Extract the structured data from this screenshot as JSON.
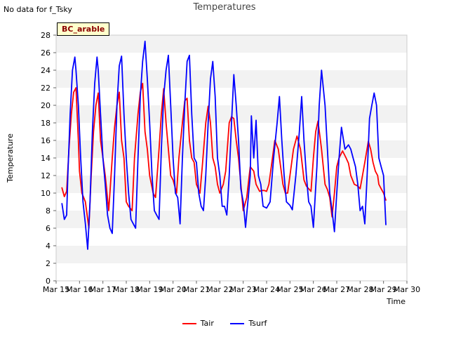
{
  "note": "No data for f_Tsky",
  "site_label": "BC_arable",
  "chart_data": {
    "type": "line",
    "title": "Temperatures",
    "xlabel": "Time",
    "ylabel": "Temperature",
    "ylim": [
      0,
      28
    ],
    "yticks": [
      0,
      2,
      4,
      6,
      8,
      10,
      12,
      14,
      16,
      18,
      20,
      22,
      24,
      26,
      28
    ],
    "xlim": [
      15,
      30
    ],
    "xticks": [
      15,
      16,
      17,
      18,
      19,
      20,
      21,
      22,
      23,
      24,
      25,
      26,
      27,
      28,
      29,
      30
    ],
    "xtick_labels": [
      "Mar 15",
      "Mar 16",
      "Mar 17",
      "Mar 18",
      "Mar 19",
      "Mar 20",
      "Mar 21",
      "Mar 22",
      "Mar 23",
      "Mar 24",
      "Mar 25",
      "Mar 26",
      "Mar 27",
      "Mar 28",
      "Mar 29",
      "Mar 30"
    ],
    "grid": "horizontal bands",
    "legend_position": "bottom-center",
    "series": [
      {
        "name": "Tair",
        "color": "#ff0000",
        "x": [
          15.25,
          15.35,
          15.45,
          15.55,
          15.65,
          15.75,
          15.85,
          15.95,
          16.0,
          16.1,
          16.25,
          16.4,
          16.5,
          16.6,
          16.7,
          16.8,
          16.9,
          17.0,
          17.1,
          17.25,
          17.4,
          17.5,
          17.6,
          17.7,
          17.8,
          17.9,
          18.0,
          18.1,
          18.25,
          18.35,
          18.5,
          18.6,
          18.7,
          18.8,
          18.9,
          19.0,
          19.15,
          19.25,
          19.4,
          19.5,
          19.6,
          19.7,
          19.8,
          19.9,
          20.0,
          20.15,
          20.25,
          20.4,
          20.5,
          20.6,
          20.7,
          20.8,
          20.9,
          21.0,
          21.15,
          21.25,
          21.4,
          21.5,
          21.6,
          21.7,
          21.8,
          21.9,
          22.0,
          22.15,
          22.25,
          22.4,
          22.5,
          22.6,
          22.7,
          22.8,
          22.9,
          23.0,
          23.15,
          23.3,
          23.45,
          23.55,
          23.7,
          23.8,
          23.9,
          24.0,
          24.1,
          24.2,
          24.35,
          24.5,
          24.6,
          24.7,
          24.8,
          24.9,
          25.0,
          25.15,
          25.3,
          25.45,
          25.6,
          25.7,
          25.8,
          25.9,
          26.0,
          26.1,
          26.2,
          26.35,
          26.5,
          26.6,
          26.7,
          26.8,
          26.9,
          27.0,
          27.1,
          27.25,
          27.4,
          27.5,
          27.6,
          27.75,
          27.9,
          28.0,
          28.1,
          28.2,
          28.35,
          28.45,
          28.55,
          28.65,
          28.75,
          28.8,
          28.9,
          29.0,
          29.1
        ],
        "y": [
          10.6,
          9.6,
          10.2,
          15.0,
          19.0,
          21.5,
          22.0,
          16.0,
          12.5,
          10.0,
          9.0,
          6.0,
          12.0,
          17.0,
          20.0,
          21.4,
          16.0,
          14.0,
          12.0,
          8.0,
          14.0,
          17.5,
          20.0,
          21.5,
          16.0,
          14.0,
          9.0,
          8.5,
          8.0,
          14.0,
          19.0,
          21.5,
          22.5,
          17.0,
          15.0,
          12.0,
          10.0,
          9.5,
          15.0,
          19.0,
          21.9,
          18.0,
          15.0,
          12.0,
          11.5,
          10.0,
          14.0,
          18.0,
          20.5,
          20.8,
          16.0,
          14.0,
          13.5,
          11.0,
          10.0,
          13.0,
          18.0,
          19.9,
          18.0,
          14.0,
          13.0,
          11.0,
          10.0,
          11.0,
          12.5,
          18.0,
          18.7,
          18.5,
          16.0,
          14.0,
          11.0,
          8.0,
          9.5,
          13.0,
          12.5,
          11.0,
          10.2,
          10.3,
          10.3,
          10.2,
          11.0,
          13.0,
          16.0,
          15.0,
          13.0,
          11.0,
          10.0,
          10.0,
          12.0,
          15.0,
          16.5,
          15.0,
          11.5,
          10.8,
          10.5,
          10.2,
          14.0,
          17.0,
          18.2,
          15.0,
          11.0,
          10.4,
          9.5,
          7.3,
          10.0,
          13.0,
          14.0,
          14.8,
          14.0,
          13.4,
          12.0,
          11.0,
          10.8,
          10.5,
          12.0,
          13.5,
          15.9,
          15.0,
          13.5,
          12.5,
          12.0,
          11.0,
          10.5,
          10.0,
          9.2
        ]
      },
      {
        "name": "Tsurf",
        "color": "#0000ff",
        "x": [
          15.25,
          15.35,
          15.45,
          15.5,
          15.6,
          15.7,
          15.8,
          15.85,
          15.95,
          16.05,
          16.15,
          16.25,
          16.35,
          16.45,
          16.55,
          16.65,
          16.75,
          16.8,
          16.9,
          17.0,
          17.1,
          17.2,
          17.3,
          17.4,
          17.5,
          17.6,
          17.7,
          17.8,
          17.9,
          18.0,
          18.1,
          18.2,
          18.3,
          18.4,
          18.5,
          18.6,
          18.7,
          18.8,
          18.9,
          19.0,
          19.1,
          19.2,
          19.3,
          19.4,
          19.5,
          19.6,
          19.7,
          19.8,
          19.9,
          20.0,
          20.1,
          20.2,
          20.3,
          20.4,
          20.5,
          20.6,
          20.7,
          20.8,
          20.9,
          21.0,
          21.1,
          21.2,
          21.3,
          21.4,
          21.5,
          21.6,
          21.7,
          21.8,
          21.9,
          22.0,
          22.1,
          22.2,
          22.3,
          22.4,
          22.5,
          22.6,
          22.7,
          22.8,
          22.9,
          23.0,
          23.1,
          23.2,
          23.3,
          23.35,
          23.45,
          23.55,
          23.65,
          23.75,
          23.85,
          24.0,
          24.15,
          24.3,
          24.45,
          24.55,
          24.65,
          24.75,
          24.85,
          25.0,
          25.1,
          25.25,
          25.4,
          25.5,
          25.6,
          25.7,
          25.8,
          25.9,
          26.0,
          26.15,
          26.25,
          26.35,
          26.5,
          26.6,
          26.7,
          26.8,
          26.9,
          27.0,
          27.1,
          27.2,
          27.35,
          27.5,
          27.6,
          27.7,
          27.8,
          27.9,
          28.0,
          28.1,
          28.2,
          28.3,
          28.4,
          28.5,
          28.6,
          28.7,
          28.8,
          28.9,
          29.0,
          29.1
        ],
        "y": [
          8.8,
          7.0,
          7.5,
          12.0,
          19.0,
          24.0,
          25.5,
          24.0,
          20.0,
          14.0,
          9.0,
          6.5,
          3.6,
          9.0,
          17.0,
          22.5,
          25.5,
          24.0,
          19.0,
          14.0,
          11.0,
          7.5,
          6.0,
          5.4,
          12.0,
          20.0,
          24.5,
          25.6,
          19.0,
          14.0,
          10.0,
          7.0,
          6.5,
          6.0,
          14.0,
          21.0,
          25.0,
          27.3,
          23.0,
          18.0,
          12.0,
          8.0,
          7.5,
          7.0,
          15.0,
          21.0,
          24.0,
          25.7,
          20.0,
          14.0,
          10.0,
          9.5,
          6.5,
          14.0,
          20.0,
          25.0,
          25.7,
          19.0,
          14.0,
          13.5,
          10.0,
          8.5,
          8.0,
          12.0,
          18.0,
          23.0,
          25.0,
          21.0,
          14.0,
          12.0,
          8.5,
          8.5,
          7.5,
          12.0,
          18.0,
          23.5,
          20.0,
          16.0,
          10.5,
          9.0,
          6.1,
          9.0,
          12.0,
          18.8,
          14.0,
          18.3,
          12.0,
          11.0,
          8.5,
          8.3,
          9.0,
          14.0,
          18.0,
          21.0,
          16.0,
          12.0,
          9.0,
          8.6,
          8.1,
          12.0,
          17.0,
          21.0,
          16.0,
          12.0,
          9.0,
          8.5,
          6.1,
          13.0,
          20.0,
          24.0,
          20.0,
          15.0,
          10.0,
          8.0,
          5.6,
          10.0,
          14.0,
          17.5,
          15.0,
          15.5,
          15.0,
          14.0,
          13.0,
          11.0,
          8.0,
          8.5,
          6.5,
          12.0,
          18.5,
          20.0,
          21.4,
          20.0,
          14.0,
          13.0,
          12.0,
          6.4
        ]
      }
    ]
  }
}
